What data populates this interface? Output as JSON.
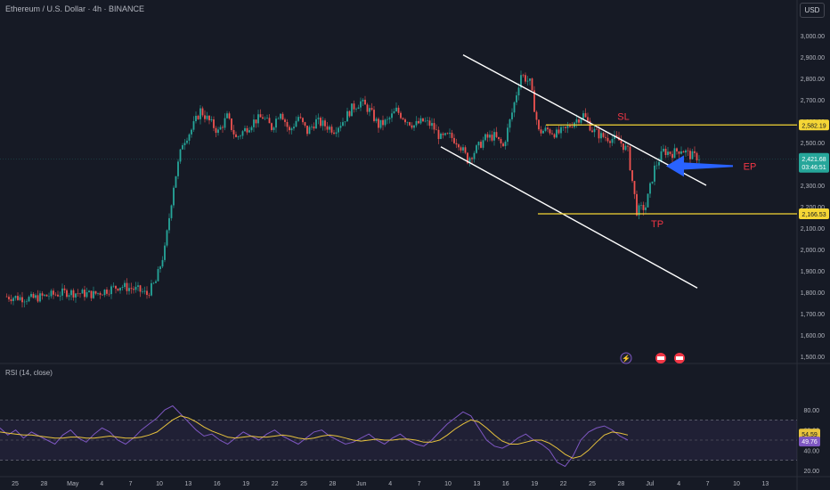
{
  "header": {
    "title": "Ethereum / U.S. Dollar · 4h · BINANCE",
    "currency": "USD",
    "rsi_label": "RSI (14, close)"
  },
  "colors": {
    "background": "#161a25",
    "up": "#26a69a",
    "down": "#ef5350",
    "level": "#f5d635",
    "annotation": "#f23645",
    "arrow": "#2962ff",
    "rsi": "#7e57c2",
    "rsi_ma": "#e8c33d"
  },
  "chart_data": [
    {
      "type": "candlestick",
      "price_axis": {
        "min": 1500,
        "max": 3000,
        "ticks": [
          "3,000.00",
          "2,900.00",
          "2,800.00",
          "2,700.00",
          "2,600.00",
          "2,500.00",
          "2,400.00",
          "2,300.00",
          "2,200.00",
          "2,100.00",
          "2,000.00",
          "1,900.00",
          "1,800.00",
          "1,700.00",
          "1,600.00",
          "1,500.00"
        ]
      },
      "time_axis": {
        "labels": [
          "25",
          "28",
          "May",
          "4",
          "7",
          "10",
          "13",
          "16",
          "19",
          "22",
          "25",
          "28",
          "Jun",
          "4",
          "7",
          "10",
          "13",
          "16",
          "19",
          "22",
          "25",
          "28",
          "Jul",
          "4",
          "7",
          "10",
          "13"
        ]
      },
      "price_path": [
        [
          0,
          1780
        ],
        [
          3,
          1770
        ],
        [
          7,
          1800
        ],
        [
          10,
          1790
        ],
        [
          13,
          1830
        ],
        [
          15,
          1810
        ],
        [
          16,
          1790
        ],
        [
          17,
          1850
        ],
        [
          18,
          2000
        ],
        [
          19,
          2300
        ],
        [
          20,
          2500
        ],
        [
          21,
          2560
        ],
        [
          22,
          2650
        ],
        [
          23,
          2600
        ],
        [
          24,
          2550
        ],
        [
          25,
          2620
        ],
        [
          26,
          2520
        ],
        [
          27,
          2560
        ],
        [
          28,
          2600
        ],
        [
          29,
          2620
        ],
        [
          30,
          2570
        ],
        [
          31,
          2650
        ],
        [
          32,
          2550
        ],
        [
          33,
          2620
        ],
        [
          34,
          2550
        ],
        [
          35,
          2600
        ],
        [
          36,
          2580
        ],
        [
          37,
          2560
        ],
        [
          38,
          2600
        ],
        [
          39,
          2660
        ],
        [
          40,
          2690
        ],
        [
          41,
          2650
        ],
        [
          42,
          2580
        ],
        [
          43,
          2600
        ],
        [
          44,
          2650
        ],
        [
          45,
          2610
        ],
        [
          46,
          2580
        ],
        [
          47,
          2600
        ],
        [
          48,
          2580
        ],
        [
          49,
          2520
        ],
        [
          50,
          2530
        ],
        [
          51,
          2500
        ],
        [
          52,
          2420
        ],
        [
          53,
          2470
        ],
        [
          54,
          2520
        ],
        [
          55,
          2530
        ],
        [
          56,
          2480
        ],
        [
          57,
          2640
        ],
        [
          58,
          2820
        ],
        [
          59,
          2780
        ],
        [
          60,
          2550
        ],
        [
          61,
          2560
        ],
        [
          62,
          2540
        ],
        [
          63,
          2560
        ],
        [
          64,
          2600
        ],
        [
          65,
          2630
        ],
        [
          66,
          2560
        ],
        [
          67,
          2530
        ],
        [
          68,
          2520
        ],
        [
          69,
          2510
        ],
        [
          70,
          2460
        ],
        [
          71,
          2180
        ],
        [
          72,
          2200
        ],
        [
          73,
          2380
        ],
        [
          74,
          2460
        ],
        [
          75,
          2450
        ],
        [
          76,
          2470
        ],
        [
          77,
          2440
        ],
        [
          78,
          2430
        ]
      ],
      "last_price": "2,421.68",
      "countdown": "03:46:51",
      "lines": [
        {
          "label": "SL",
          "price": 2582.19,
          "price_label": "2,582.19"
        },
        {
          "label": "TP",
          "price": 2166.53,
          "price_label": "2,166.53"
        },
        {
          "label": "EP",
          "price": 2390
        }
      ],
      "channel": {
        "upper": [
          [
            58,
            2910
          ],
          [
            85,
            2300
          ]
        ],
        "lower": [
          [
            54,
            2480
          ],
          [
            85,
            1820
          ]
        ]
      }
    },
    {
      "type": "line",
      "title": "RSI (14, close)",
      "y_axis": {
        "ticks": [
          "80.00",
          "60.00",
          "40.00",
          "20.00"
        ]
      },
      "band": [
        30,
        70
      ],
      "current_values": [
        "54.59",
        "49.76"
      ],
      "series": [
        {
          "name": "RSI",
          "values": [
            62,
            55,
            60,
            52,
            58,
            54,
            50,
            46,
            55,
            60,
            52,
            48,
            56,
            62,
            58,
            50,
            46,
            52,
            60,
            66,
            72,
            80,
            84,
            76,
            68,
            60,
            54,
            56,
            50,
            46,
            52,
            58,
            54,
            50,
            56,
            60,
            54,
            50,
            46,
            52,
            58,
            60,
            54,
            50,
            46,
            48,
            52,
            56,
            50,
            46,
            52,
            56,
            50,
            46,
            44,
            50,
            58,
            66,
            72,
            78,
            74,
            62,
            50,
            44,
            42,
            46,
            52,
            56,
            50,
            46,
            40,
            28,
            24,
            34,
            50,
            58,
            62,
            64,
            60,
            54,
            50
          ]
        },
        {
          "name": "MA",
          "values": [
            58,
            57,
            56,
            55,
            55,
            54,
            53,
            52,
            52,
            53,
            53,
            52,
            52,
            53,
            54,
            53,
            52,
            52,
            53,
            55,
            58,
            64,
            70,
            74,
            72,
            68,
            63,
            59,
            56,
            53,
            52,
            53,
            54,
            53,
            53,
            54,
            55,
            54,
            52,
            51,
            52,
            54,
            55,
            54,
            52,
            50,
            49,
            50,
            51,
            50,
            50,
            51,
            51,
            50,
            48,
            48,
            50,
            55,
            61,
            66,
            70,
            68,
            62,
            55,
            49,
            46,
            46,
            48,
            50,
            50,
            47,
            42,
            36,
            32,
            34,
            40,
            48,
            55,
            58,
            57,
            55
          ]
        }
      ]
    }
  ]
}
